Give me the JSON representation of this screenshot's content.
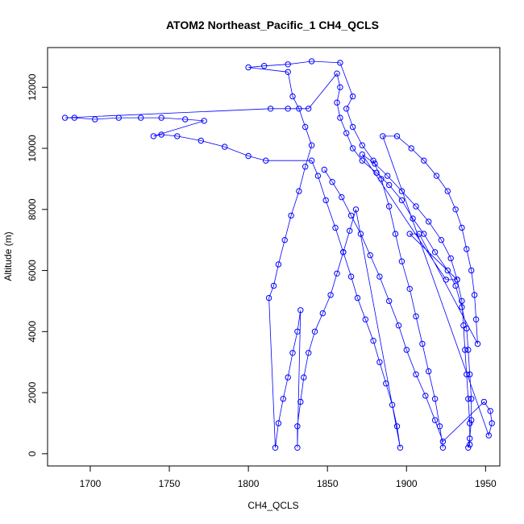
{
  "chart_data": {
    "type": "scatter",
    "title": "ATOM2 Northeast_Pacific_1 CH4_QCLS",
    "xlabel": "CH4_QCLS",
    "ylabel": "Altitude (m)",
    "xlim": [
      1673,
      1959
    ],
    "ylim": [
      -400,
      13300
    ],
    "xticks": [
      1700,
      1750,
      1800,
      1850,
      1900,
      1950
    ],
    "yticks": [
      0,
      2000,
      4000,
      6000,
      8000,
      10000,
      12000
    ],
    "marker": "open-circle",
    "connected_by_line": true,
    "color": "#0000ff",
    "series": [
      {
        "points": [
          [
            1923,
            200
          ],
          [
            1921,
            900
          ],
          [
            1918,
            1800
          ],
          [
            1914,
            2700
          ],
          [
            1910,
            3600
          ],
          [
            1906,
            4500
          ],
          [
            1902,
            5400
          ],
          [
            1897,
            6300
          ],
          [
            1893,
            7200
          ],
          [
            1889,
            8100
          ],
          [
            1884,
            9000
          ],
          [
            1879,
            9600
          ],
          [
            1872,
            10100
          ],
          [
            1866,
            10700
          ],
          [
            1862,
            11300
          ],
          [
            1866,
            11700
          ],
          [
            1858,
            12800
          ],
          [
            1840,
            12850
          ],
          [
            1825,
            12750
          ],
          [
            1810,
            12700
          ],
          [
            1800,
            12650
          ],
          [
            1825,
            12500
          ],
          [
            1828,
            11700
          ],
          [
            1832,
            11300
          ],
          [
            1836,
            10700
          ],
          [
            1840,
            10100
          ],
          [
            1836,
            9400
          ],
          [
            1832,
            8600
          ],
          [
            1827,
            7800
          ],
          [
            1823,
            7000
          ],
          [
            1819,
            6200
          ],
          [
            1816,
            5500
          ],
          [
            1813,
            5100
          ],
          [
            1817,
            200
          ],
          [
            1819,
            1000
          ],
          [
            1822,
            1800
          ],
          [
            1825,
            2500
          ],
          [
            1828,
            3300
          ],
          [
            1831,
            4000
          ],
          [
            1833,
            4700
          ],
          [
            1831,
            200
          ],
          [
            1831,
            900
          ],
          [
            1833,
            1700
          ],
          [
            1835,
            2500
          ],
          [
            1838,
            3300
          ],
          [
            1842,
            4000
          ],
          [
            1847,
            4600
          ],
          [
            1852,
            5200
          ],
          [
            1856,
            5900
          ],
          [
            1860,
            6600
          ],
          [
            1864,
            7300
          ],
          [
            1868,
            8000
          ],
          [
            1896,
            200
          ],
          [
            1894,
            900
          ],
          [
            1891,
            1600
          ],
          [
            1887,
            2300
          ],
          [
            1883,
            3000
          ],
          [
            1879,
            3700
          ],
          [
            1874,
            4400
          ],
          [
            1869,
            5100
          ],
          [
            1865,
            5800
          ],
          [
            1860,
            6600
          ],
          [
            1855,
            7400
          ],
          [
            1849,
            8300
          ],
          [
            1844,
            9100
          ],
          [
            1840,
            9600
          ],
          [
            1811,
            9600
          ],
          [
            1800,
            9750
          ],
          [
            1785,
            10050
          ],
          [
            1770,
            10250
          ],
          [
            1755,
            10400
          ],
          [
            1745,
            10450
          ],
          [
            1740,
            10400
          ],
          [
            1772,
            10900
          ],
          [
            1760,
            10950
          ],
          [
            1745,
            11000
          ],
          [
            1732,
            11000
          ],
          [
            1718,
            11000
          ],
          [
            1703,
            10950
          ],
          [
            1690,
            11000
          ],
          [
            1684,
            11000
          ],
          [
            1814,
            11300
          ],
          [
            1825,
            11300
          ],
          [
            1838,
            11300
          ],
          [
            1856,
            12450
          ],
          [
            1858,
            12000
          ],
          [
            1856,
            11500
          ],
          [
            1858,
            11000
          ],
          [
            1862,
            10500
          ],
          [
            1866,
            10000
          ],
          [
            1872,
            9600
          ],
          [
            1881,
            9200
          ],
          [
            1889,
            8800
          ],
          [
            1897,
            8300
          ],
          [
            1904,
            7700
          ],
          [
            1911,
            7200
          ],
          [
            1918,
            6600
          ],
          [
            1926,
            6000
          ],
          [
            1931,
            5500
          ],
          [
            1935,
            4800
          ],
          [
            1938,
            4100
          ],
          [
            1939,
            3400
          ],
          [
            1940,
            2600
          ],
          [
            1941,
            1800
          ],
          [
            1941,
            1100
          ],
          [
            1940,
            500
          ],
          [
            1939,
            200
          ],
          [
            1940,
            300
          ],
          [
            1940,
            1000
          ],
          [
            1939,
            1800
          ],
          [
            1938,
            2600
          ],
          [
            1937,
            3400
          ],
          [
            1936,
            4200
          ],
          [
            1935,
            5000
          ],
          [
            1932,
            5700
          ],
          [
            1928,
            6400
          ],
          [
            1922,
            7000
          ],
          [
            1914,
            7600
          ],
          [
            1906,
            8100
          ],
          [
            1897,
            8600
          ],
          [
            1888,
            9100
          ],
          [
            1880,
            9500
          ],
          [
            1872,
            9800
          ],
          [
            1925,
            5700
          ],
          [
            1932,
            5700
          ],
          [
            1902,
            7200
          ],
          [
            1908,
            7200
          ],
          [
            1945,
            3600
          ],
          [
            1944,
            4400
          ],
          [
            1943,
            5200
          ],
          [
            1941,
            6000
          ],
          [
            1938,
            6700
          ],
          [
            1935,
            7400
          ],
          [
            1931,
            8000
          ],
          [
            1926,
            8600
          ],
          [
            1919,
            9100
          ],
          [
            1911,
            9600
          ],
          [
            1903,
            10000
          ],
          [
            1894,
            10400
          ],
          [
            1885,
            10400
          ],
          [
            1952,
            600
          ],
          [
            1954,
            1000
          ],
          [
            1953,
            1400
          ],
          [
            1949,
            1700
          ],
          [
            1923,
            400
          ],
          [
            1918,
            1100
          ],
          [
            1912,
            1900
          ],
          [
            1906,
            2600
          ],
          [
            1900,
            3400
          ],
          [
            1895,
            4200
          ],
          [
            1889,
            5000
          ],
          [
            1883,
            5800
          ],
          [
            1877,
            6500
          ],
          [
            1871,
            7200
          ],
          [
            1865,
            7800
          ],
          [
            1859,
            8400
          ],
          [
            1853,
            8900
          ],
          [
            1848,
            9300
          ]
        ]
      }
    ]
  }
}
